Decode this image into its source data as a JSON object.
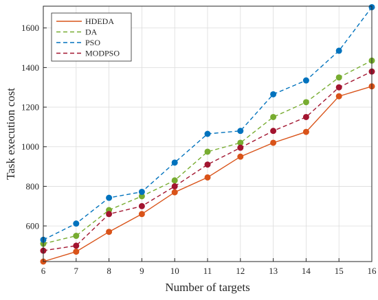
{
  "chart_data": {
    "type": "line",
    "title": "",
    "xlabel": "Number of targets",
    "ylabel": "Task execution cost",
    "x": [
      6,
      7,
      8,
      9,
      10,
      11,
      12,
      13,
      14,
      15,
      16
    ],
    "xlim": [
      6,
      16
    ],
    "ylim": [
      420,
      1710
    ],
    "yticks": [
      600,
      800,
      1000,
      1200,
      1400,
      1600
    ],
    "grid": true,
    "legend_position": "top-left",
    "series": [
      {
        "name": "HDEDA",
        "color": "#d95319",
        "line_style": "solid",
        "values": [
          420,
          470,
          570,
          660,
          770,
          845,
          950,
          1020,
          1075,
          1255,
          1305
        ]
      },
      {
        "name": "DA",
        "color": "#77ac30",
        "line_style": "dashed",
        "values": [
          510,
          550,
          680,
          750,
          830,
          975,
          1020,
          1150,
          1225,
          1350,
          1435
        ]
      },
      {
        "name": "PSO",
        "color": "#0072bd",
        "line_style": "dashed",
        "values": [
          530,
          612,
          742,
          772,
          920,
          1065,
          1080,
          1265,
          1335,
          1485,
          1705
        ]
      },
      {
        "name": "MODPSO",
        "color": "#a2142f",
        "line_style": "dashed",
        "values": [
          475,
          500,
          660,
          700,
          800,
          910,
          995,
          1080,
          1150,
          1300,
          1380
        ]
      }
    ]
  }
}
